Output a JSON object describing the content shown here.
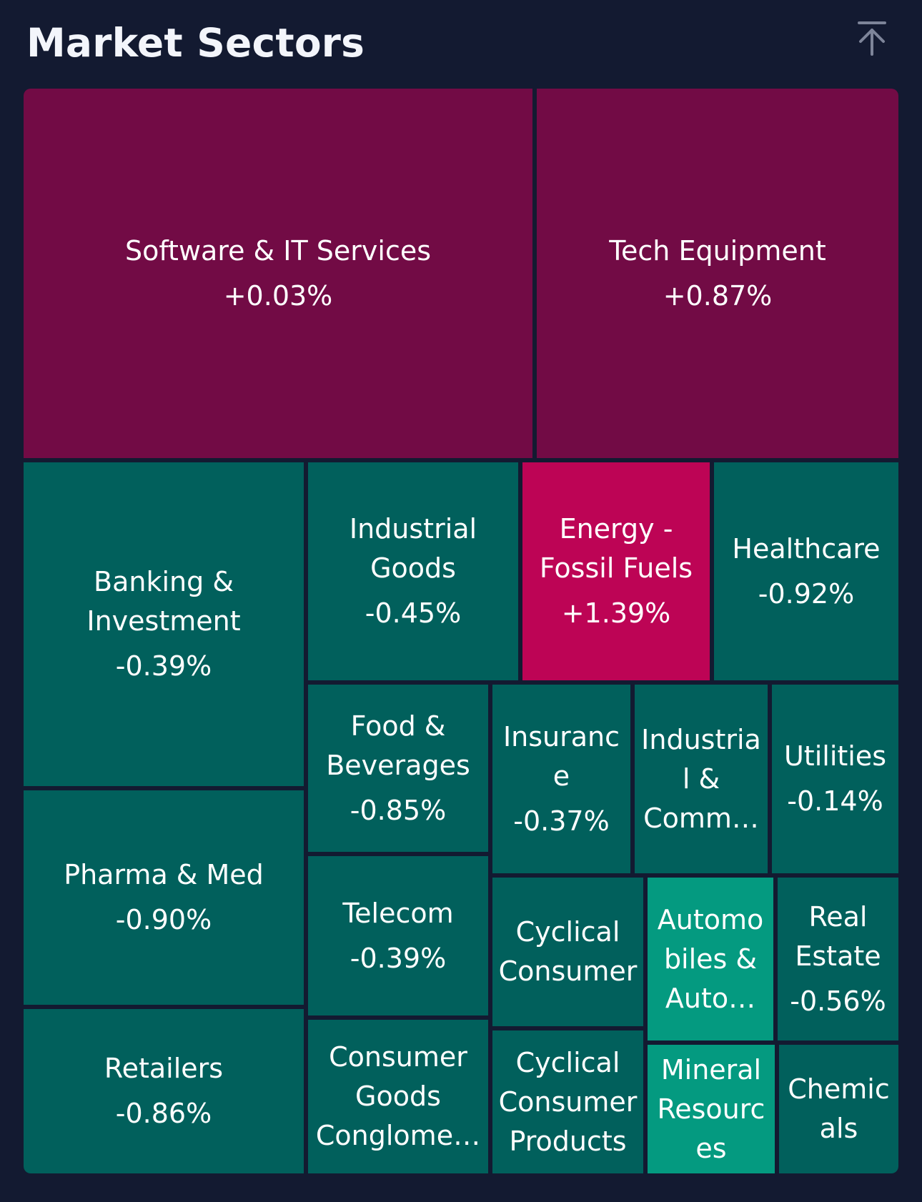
{
  "header": {
    "title": "Market Sectors",
    "scroll_top_icon": "arrow-up-to-line-icon"
  },
  "colors": {
    "background": "#131a31",
    "gain_small": "#720b45",
    "gain_large": "#bd0455",
    "loss": "#01605c",
    "loss_alt": "#049a80"
  },
  "sectors": [
    {
      "name": "Software & IT Services",
      "label": "Software & IT Services",
      "change": "+0.03%",
      "color": "#720b45"
    },
    {
      "name": "Tech Equipment",
      "label": "Tech Equipment",
      "change": "+0.87%",
      "color": "#720b45"
    },
    {
      "name": "Banking & Investment",
      "label": "Banking &\nInvestment",
      "change": "-0.39%",
      "color": "#01605c"
    },
    {
      "name": "Industrial Goods",
      "label": "Industrial\nGoods",
      "change": "-0.45%",
      "color": "#01605c"
    },
    {
      "name": "Energy - Fossil Fuels",
      "label": "Energy -\nFossil Fuels",
      "change": "+1.39%",
      "color": "#bd0455"
    },
    {
      "name": "Healthcare",
      "label": "Healthcare",
      "change": "-0.92%",
      "color": "#01605c"
    },
    {
      "name": "Food & Beverages",
      "label": "Food &\nBeverages",
      "change": "-0.85%",
      "color": "#01605c"
    },
    {
      "name": "Insurance",
      "label": "Insuranc\ne",
      "change": "-0.37%",
      "color": "#01605c"
    },
    {
      "name": "Industrial & Commercial",
      "label": "Industria\nl &\nComm…",
      "change": "",
      "color": "#01605c"
    },
    {
      "name": "Utilities",
      "label": "Utilities",
      "change": "-0.14%",
      "color": "#01605c"
    },
    {
      "name": "Pharma & Med",
      "label": "Pharma & Med",
      "change": "-0.90%",
      "color": "#01605c"
    },
    {
      "name": "Telecom",
      "label": "Telecom",
      "change": "-0.39%",
      "color": "#01605c"
    },
    {
      "name": "Cyclical Consumer",
      "label": "Cyclical\nConsumer",
      "change": "",
      "color": "#01605c"
    },
    {
      "name": "Automobiles & Auto",
      "label": "Automo\nbiles &\nAuto…",
      "change": "",
      "color": "#049a80"
    },
    {
      "name": "Real Estate",
      "label": "Real\nEstate",
      "change": "-0.56%",
      "color": "#01605c"
    },
    {
      "name": "Retailers",
      "label": "Retailers",
      "change": "-0.86%",
      "color": "#01605c"
    },
    {
      "name": "Consumer Goods Conglomerates",
      "label": "Consumer\nGoods\nConglome…",
      "change": "",
      "color": "#01605c"
    },
    {
      "name": "Cyclical Consumer Products",
      "label": "Cyclical\nConsumer\nProducts",
      "change": "",
      "color": "#01605c"
    },
    {
      "name": "Mineral Resources",
      "label": "Mineral\nResourc\nes",
      "change": "",
      "color": "#049a80"
    },
    {
      "name": "Chemicals",
      "label": "Chemic\nals",
      "change": "",
      "color": "#01605c"
    }
  ]
}
